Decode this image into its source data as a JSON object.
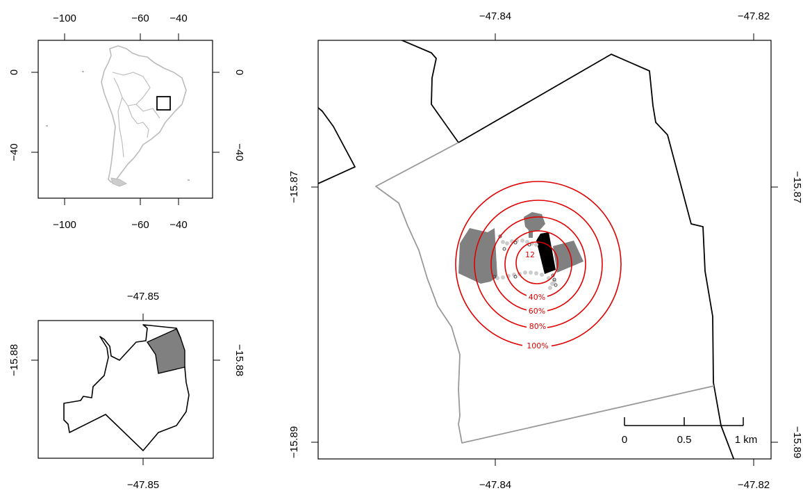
{
  "inset_south_america": {
    "x_ticks": [
      "−100",
      "−60",
      "−40"
    ],
    "y_ticks_left": [
      "0",
      "−40"
    ],
    "y_ticks_right": [
      "0",
      "−40"
    ]
  },
  "inset_district": {
    "x_ticks": [
      "−47.85"
    ],
    "y_ticks": [
      "−15.88"
    ]
  },
  "main_map": {
    "x_ticks": [
      "−47.84",
      "−47.82"
    ],
    "y_ticks": [
      "−15.87",
      "−15.89"
    ],
    "contour_labels": [
      "12",
      "40%",
      "60%",
      "80%",
      "100%"
    ],
    "contour_color": "#e00000",
    "scale_bar": {
      "labels": [
        "0",
        "0.5",
        "1 km"
      ]
    }
  },
  "colors": {
    "boundary": "#000000",
    "gray_boundary": "#999999",
    "habitat_fill": "#808080",
    "continent_outline": "#bbbbbb",
    "points": "#cccccc"
  }
}
